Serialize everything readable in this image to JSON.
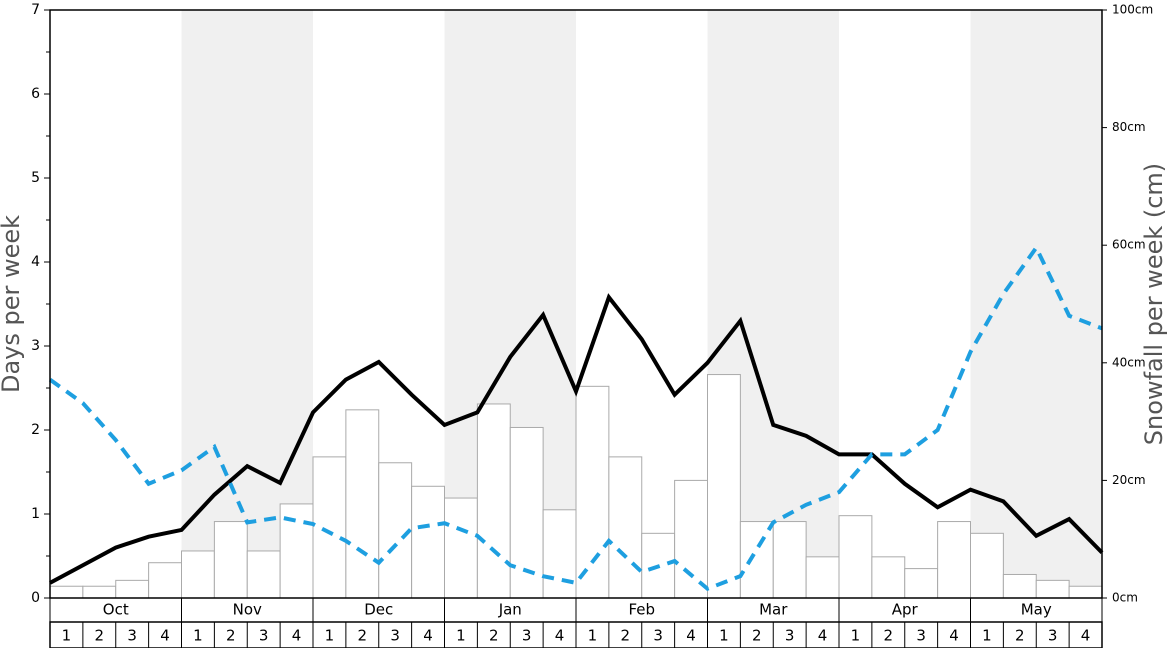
{
  "chart_data": {
    "type": "bar",
    "ylabel": "Days per week",
    "y2label": "Snowfall per week (cm)",
    "months": [
      "Oct",
      "Nov",
      "Dec",
      "Jan",
      "Feb",
      "Mar",
      "Apr",
      "May"
    ],
    "categories": [
      "1",
      "2",
      "3",
      "4",
      "1",
      "2",
      "3",
      "4",
      "1",
      "2",
      "3",
      "4",
      "1",
      "2",
      "3",
      "4",
      "1",
      "2",
      "3",
      "4",
      "1",
      "2",
      "3",
      "4",
      "1",
      "2",
      "3",
      "4",
      "1",
      "2",
      "3",
      "4"
    ],
    "ylim": [
      0,
      7
    ],
    "yticks": [
      0,
      1,
      2,
      3,
      4,
      5,
      6,
      7
    ],
    "y2lim": [
      0,
      100
    ],
    "y2ticks": [
      {
        "value": 0,
        "label": "0cm"
      },
      {
        "value": 20,
        "label": "20cm"
      },
      {
        "value": 40,
        "label": "40cm"
      },
      {
        "value": 60,
        "label": "60cm"
      },
      {
        "value": 80,
        "label": "80cm"
      },
      {
        "value": 100,
        "label": "100cm"
      }
    ],
    "xlim": [
      0,
      32
    ],
    "x": [
      0,
      1,
      2,
      3,
      4,
      5,
      6,
      7,
      8,
      9,
      10,
      11,
      12,
      13,
      14,
      15,
      16,
      17,
      18,
      19,
      20,
      21,
      22,
      23,
      24,
      25,
      26,
      27,
      28,
      29,
      30,
      31,
      32
    ],
    "series": [
      {
        "type": "bar",
        "axis": "y2",
        "color": "#ffffff",
        "values": [
          2,
          2,
          3,
          6,
          8,
          13,
          8,
          16,
          24,
          32,
          23,
          19,
          17,
          33,
          29,
          15,
          36,
          24,
          11,
          20,
          38,
          13,
          13,
          7,
          14,
          7,
          5,
          13,
          11,
          4,
          3,
          2
        ]
      },
      {
        "type": "line",
        "style": "solid",
        "color": "#000000",
        "values": [
          0.18,
          0.39,
          0.6,
          0.73,
          0.81,
          1.23,
          1.57,
          1.37,
          2.21,
          2.6,
          2.81,
          2.42,
          2.06,
          2.21,
          2.87,
          3.37,
          2.46,
          3.58,
          3.08,
          2.42,
          2.8,
          3.3,
          2.06,
          1.93,
          1.71,
          1.71,
          1.36,
          1.08,
          1.29,
          1.15,
          0.74,
          0.94,
          0.54
        ]
      },
      {
        "type": "line",
        "style": "dashed",
        "color": "#1e9fe0",
        "values": [
          2.6,
          2.32,
          1.88,
          1.36,
          1.52,
          1.8,
          0.9,
          0.96,
          0.88,
          0.68,
          0.42,
          0.83,
          0.89,
          0.74,
          0.39,
          0.26,
          0.18,
          0.68,
          0.31,
          0.44,
          0.11,
          0.26,
          0.9,
          1.11,
          1.26,
          1.71,
          1.71,
          2.0,
          2.93,
          3.62,
          4.17,
          3.36,
          3.21
        ]
      }
    ]
  }
}
